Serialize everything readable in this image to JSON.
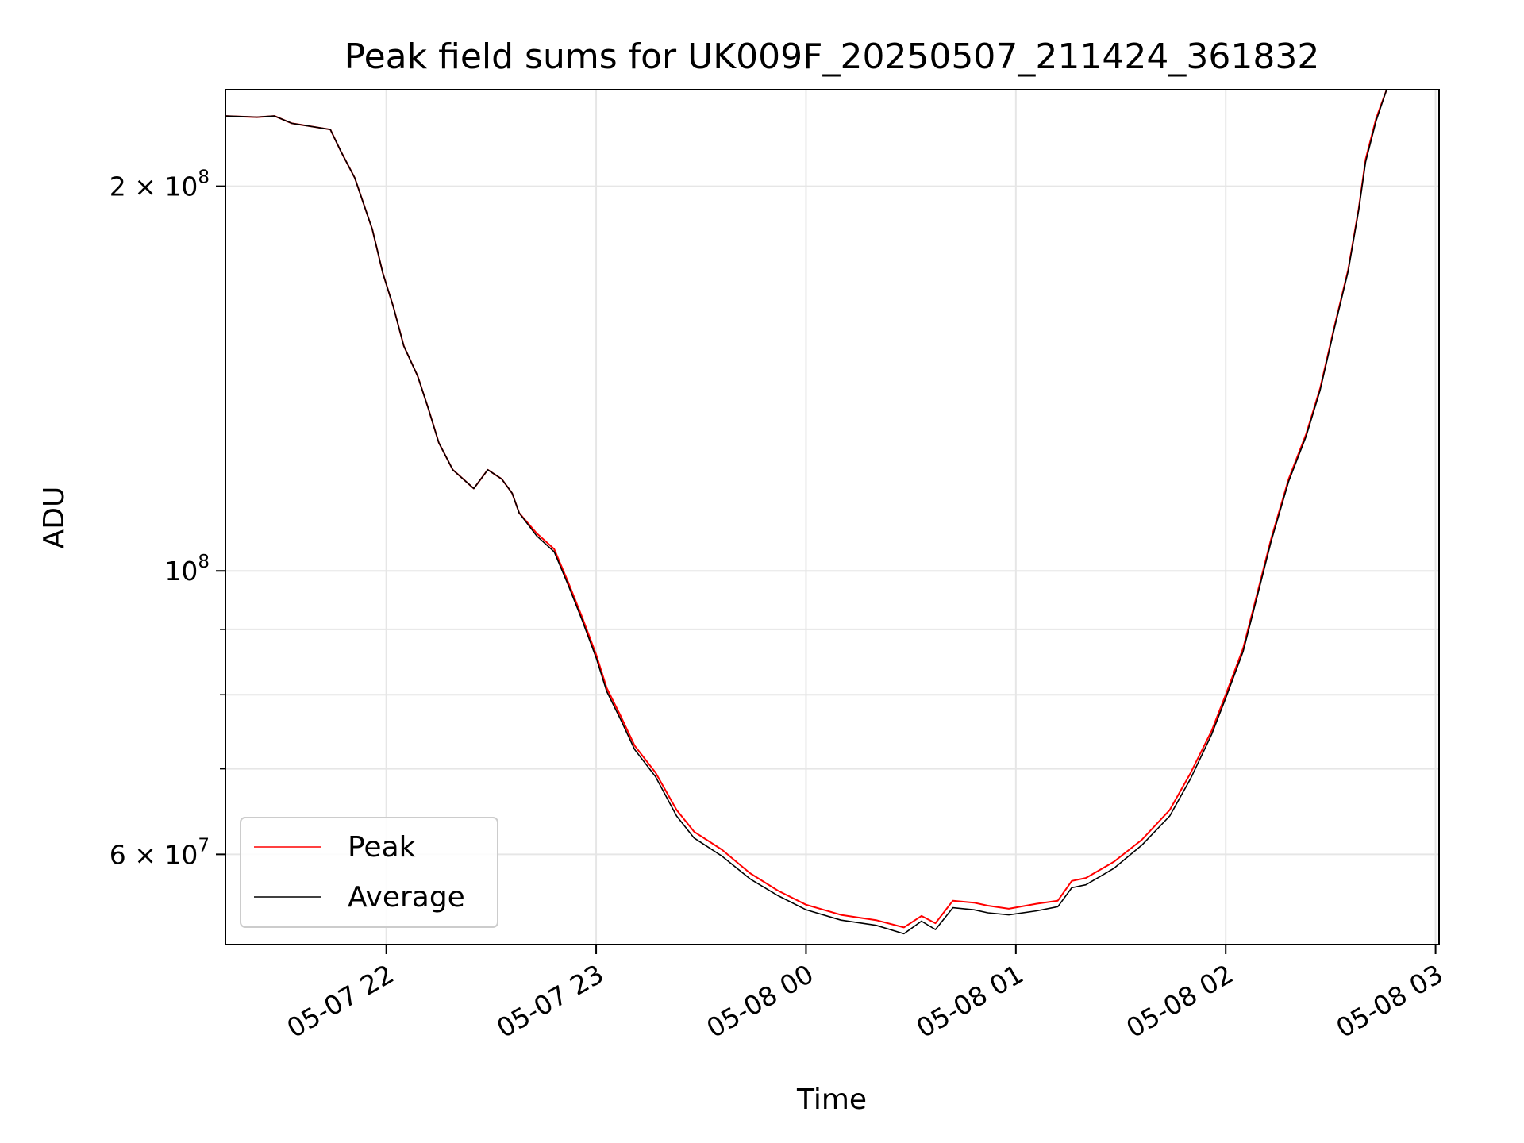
{
  "chart_data": {
    "type": "line",
    "title": "Peak field sums for UK009F_20250507_211424_361832",
    "xlabel": "Time",
    "ylabel": "ADU",
    "y_scale": "log",
    "ylim": [
      51000000,
      238000000
    ],
    "xlim": [
      "2025-05-07 21:14",
      "2025-05-08 03:01"
    ],
    "x_ticks": [
      {
        "value": "2025-05-07 22:00",
        "label": "05-07 22"
      },
      {
        "value": "2025-05-07 23:00",
        "label": "05-07 23"
      },
      {
        "value": "2025-05-08 00:00",
        "label": "05-08 00"
      },
      {
        "value": "2025-05-08 01:00",
        "label": "05-08 01"
      },
      {
        "value": "2025-05-08 02:00",
        "label": "05-08 02"
      },
      {
        "value": "2025-05-08 03:00",
        "label": "05-08 03"
      }
    ],
    "y_ticks": [
      {
        "value": 200000000,
        "mantissa": "2",
        "exponent": "8"
      },
      {
        "value": 100000000,
        "mantissa": "",
        "exponent": "8"
      },
      {
        "value": 60000000,
        "mantissa": "6",
        "exponent": "7"
      }
    ],
    "y_minor_ticks": [
      70000000,
      80000000,
      90000000
    ],
    "grid": true,
    "legend_position": "lower-left",
    "series": [
      {
        "name": "Peak",
        "color": "#ff0000",
        "x": [
          "2025-05-07 21:14",
          "2025-05-07 21:23",
          "2025-05-07 21:28",
          "2025-05-07 21:33",
          "2025-05-07 21:44",
          "2025-05-07 21:47",
          "2025-05-07 21:51",
          "2025-05-07 21:56",
          "2025-05-07 21:59",
          "2025-05-07 22:02",
          "2025-05-07 22:05",
          "2025-05-07 22:09",
          "2025-05-07 22:12",
          "2025-05-07 22:15",
          "2025-05-07 22:19",
          "2025-05-07 22:25",
          "2025-05-07 22:29",
          "2025-05-07 22:33",
          "2025-05-07 22:36",
          "2025-05-07 22:38",
          "2025-05-07 22:43",
          "2025-05-07 22:48",
          "2025-05-07 22:52",
          "2025-05-07 22:56",
          "2025-05-07 23:00",
          "2025-05-07 23:03",
          "2025-05-07 23:07",
          "2025-05-07 23:11",
          "2025-05-07 23:17",
          "2025-05-07 23:23",
          "2025-05-07 23:28",
          "2025-05-07 23:36",
          "2025-05-07 23:44",
          "2025-05-07 23:52",
          "2025-05-08 00:00",
          "2025-05-08 00:10",
          "2025-05-08 00:20",
          "2025-05-08 00:28",
          "2025-05-08 00:33",
          "2025-05-08 00:37",
          "2025-05-08 00:42",
          "2025-05-08 00:48",
          "2025-05-08 00:52",
          "2025-05-08 00:58",
          "2025-05-08 01:06",
          "2025-05-08 01:12",
          "2025-05-08 01:16",
          "2025-05-08 01:20",
          "2025-05-08 01:28",
          "2025-05-08 01:36",
          "2025-05-08 01:44",
          "2025-05-08 01:50",
          "2025-05-08 01:56",
          "2025-05-08 02:00",
          "2025-05-08 02:05",
          "2025-05-08 02:09",
          "2025-05-08 02:13",
          "2025-05-08 02:18",
          "2025-05-08 02:23",
          "2025-05-08 02:27",
          "2025-05-08 02:31",
          "2025-05-08 02:35",
          "2025-05-08 02:38",
          "2025-05-08 02:40",
          "2025-05-08 02:43",
          "2025-05-08 02:46",
          "2025-05-08 03:01"
        ],
        "values": [
          227000000,
          226500000,
          227000000,
          224000000,
          221500000,
          213000000,
          203000000,
          185000000,
          171000000,
          161000000,
          150000000,
          142000000,
          134000000,
          126000000,
          120000000,
          116000000,
          120000000,
          118000000,
          115000000,
          111000000,
          107000000,
          104000000,
          98000000,
          92000000,
          86000000,
          81000000,
          77000000,
          73000000,
          69500000,
          65000000,
          62500000,
          60500000,
          58000000,
          56200000,
          54800000,
          53800000,
          53300000,
          52600000,
          53700000,
          53000000,
          55200000,
          55000000,
          54700000,
          54400000,
          54900000,
          55200000,
          57200000,
          57500000,
          59200000,
          61600000,
          65000000,
          69500000,
          75000000,
          80000000,
          87000000,
          96000000,
          106000000,
          118000000,
          128000000,
          139000000,
          155000000,
          172000000,
          192000000,
          210000000,
          226000000,
          238000000,
          238000000
        ]
      },
      {
        "name": "Average",
        "color": "#000000",
        "x": [
          "2025-05-07 21:14",
          "2025-05-07 21:23",
          "2025-05-07 21:28",
          "2025-05-07 21:33",
          "2025-05-07 21:44",
          "2025-05-07 21:47",
          "2025-05-07 21:51",
          "2025-05-07 21:56",
          "2025-05-07 21:59",
          "2025-05-07 22:02",
          "2025-05-07 22:05",
          "2025-05-07 22:09",
          "2025-05-07 22:12",
          "2025-05-07 22:15",
          "2025-05-07 22:19",
          "2025-05-07 22:25",
          "2025-05-07 22:29",
          "2025-05-07 22:33",
          "2025-05-07 22:36",
          "2025-05-07 22:38",
          "2025-05-07 22:43",
          "2025-05-07 22:48",
          "2025-05-07 22:52",
          "2025-05-07 22:56",
          "2025-05-07 23:00",
          "2025-05-07 23:03",
          "2025-05-07 23:07",
          "2025-05-07 23:11",
          "2025-05-07 23:17",
          "2025-05-07 23:23",
          "2025-05-07 23:28",
          "2025-05-07 23:36",
          "2025-05-07 23:44",
          "2025-05-07 23:52",
          "2025-05-08 00:00",
          "2025-05-08 00:10",
          "2025-05-08 00:20",
          "2025-05-08 00:28",
          "2025-05-08 00:33",
          "2025-05-08 00:37",
          "2025-05-08 00:42",
          "2025-05-08 00:48",
          "2025-05-08 00:52",
          "2025-05-08 00:58",
          "2025-05-08 01:06",
          "2025-05-08 01:12",
          "2025-05-08 01:16",
          "2025-05-08 01:20",
          "2025-05-08 01:28",
          "2025-05-08 01:36",
          "2025-05-08 01:44",
          "2025-05-08 01:50",
          "2025-05-08 01:56",
          "2025-05-08 02:00",
          "2025-05-08 02:05",
          "2025-05-08 02:09",
          "2025-05-08 02:13",
          "2025-05-08 02:18",
          "2025-05-08 02:23",
          "2025-05-08 02:27",
          "2025-05-08 02:31",
          "2025-05-08 02:35",
          "2025-05-08 02:38",
          "2025-05-08 02:40",
          "2025-05-08 02:43",
          "2025-05-08 02:46",
          "2025-05-08 03:01"
        ],
        "values": [
          227000000,
          226500000,
          227000000,
          224000000,
          221500000,
          213000000,
          203000000,
          185000000,
          171000000,
          161000000,
          150000000,
          142000000,
          134000000,
          126000000,
          120000000,
          116000000,
          120000000,
          118000000,
          115000000,
          111000000,
          106500000,
          103500000,
          97500000,
          91500000,
          85500000,
          80500000,
          76500000,
          72500000,
          69000000,
          64300000,
          61800000,
          59800000,
          57400000,
          55700000,
          54300000,
          53300000,
          52800000,
          52000000,
          53200000,
          52400000,
          54500000,
          54300000,
          54000000,
          53800000,
          54200000,
          54600000,
          56500000,
          56800000,
          58500000,
          61000000,
          64300000,
          68800000,
          74500000,
          79500000,
          86500000,
          95500000,
          105500000,
          117500000,
          127500000,
          138500000,
          154500000,
          171500000,
          191500000,
          209000000,
          225000000,
          238000000,
          238000000
        ]
      }
    ]
  }
}
